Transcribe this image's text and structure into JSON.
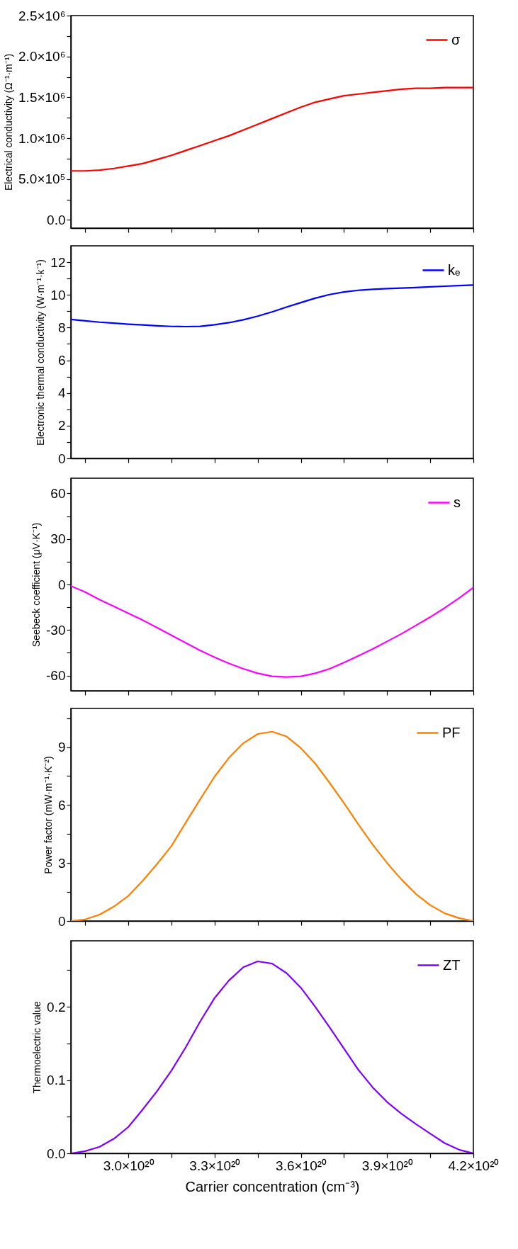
{
  "chart_data": [
    {
      "type": "line",
      "ylabel": "Electrical conductivity (Ω⁻¹·m⁻¹)",
      "legend": "top right",
      "tick_labels": "y",
      "x": [
        2.8e+20,
        2.85e+20,
        2.9e+20,
        2.95e+20,
        3e+20,
        3.05e+20,
        3.1e+20,
        3.15e+20,
        3.2e+20,
        3.25e+20,
        3.3e+20,
        3.35e+20,
        3.4e+20,
        3.45e+20,
        3.5e+20,
        3.55e+20,
        3.6e+20,
        3.65e+20,
        3.7e+20,
        3.75e+20,
        3.8e+20,
        3.85e+20,
        3.9e+20,
        3.95e+20,
        4e+20,
        4.05e+20,
        4.1e+20,
        4.15e+20,
        4.2e+20
      ],
      "series": [
        {
          "name": "σ",
          "color": "#ff0000",
          "values": [
            600000,
            600000,
            610000,
            630000,
            660000,
            690000,
            740000,
            790000,
            850000,
            910000,
            970000,
            1030000,
            1100000,
            1170000,
            1240000,
            1310000,
            1380000,
            1440000,
            1480000,
            1520000,
            1540000,
            1560000,
            1580000,
            1600000,
            1610000,
            1610000,
            1620000,
            1620000,
            1620000
          ]
        }
      ],
      "xlim": [
        2.8e+20,
        4.2e+20
      ],
      "xticks": [
        2.85e+20,
        3e+20,
        3.15e+20,
        3.3e+20,
        3.45e+20,
        3.6e+20,
        3.75e+20,
        3.9e+20,
        4.05e+20,
        4.2e+20
      ],
      "ylim": [
        -100000,
        2500000
      ],
      "yticks": [
        {
          "value": 0,
          "label": "0.0"
        },
        {
          "value": 250000,
          "label": null
        },
        {
          "value": 500000,
          "label": "5.0×10⁵"
        },
        {
          "value": 750000,
          "label": null
        },
        {
          "value": 1000000,
          "label": "1.0×10⁶"
        },
        {
          "value": 1250000,
          "label": null
        },
        {
          "value": 1500000,
          "label": "1.5×10⁶"
        },
        {
          "value": 1750000,
          "label": null
        },
        {
          "value": 2000000,
          "label": "2.0×10⁶"
        },
        {
          "value": 2250000,
          "label": null
        },
        {
          "value": 2500000,
          "label": "2.5×10⁶"
        }
      ]
    },
    {
      "type": "line",
      "ylabel": "Electronic thermal conductivity (W·m⁻¹·k⁻¹)",
      "legend": "top right",
      "tick_labels": "y",
      "x": [
        2.8e+20,
        2.85e+20,
        2.9e+20,
        2.95e+20,
        3e+20,
        3.05e+20,
        3.1e+20,
        3.15e+20,
        3.2e+20,
        3.25e+20,
        3.3e+20,
        3.35e+20,
        3.4e+20,
        3.45e+20,
        3.5e+20,
        3.55e+20,
        3.6e+20,
        3.65e+20,
        3.7e+20,
        3.75e+20,
        3.8e+20,
        3.85e+20,
        3.9e+20,
        3.95e+20,
        4e+20,
        4.05e+20,
        4.1e+20,
        4.15e+20,
        4.2e+20
      ],
      "series": [
        {
          "name": "kₑ",
          "color": "#0000ff",
          "values": [
            8.5,
            8.41,
            8.33,
            8.27,
            8.21,
            8.16,
            8.11,
            8.07,
            8.06,
            8.08,
            8.17,
            8.3,
            8.48,
            8.7,
            8.96,
            9.25,
            9.53,
            9.8,
            10.02,
            10.18,
            10.28,
            10.34,
            10.38,
            10.42,
            10.45,
            10.49,
            10.53,
            10.57,
            10.6
          ]
        }
      ],
      "xlim": [
        2.8e+20,
        4.2e+20
      ],
      "xticks": [
        2.85e+20,
        3e+20,
        3.15e+20,
        3.3e+20,
        3.45e+20,
        3.6e+20,
        3.75e+20,
        3.9e+20,
        4.05e+20,
        4.2e+20
      ],
      "ylim": [
        0,
        13
      ],
      "yticks": [
        0,
        {
          "value": 1,
          "label": null
        },
        2,
        {
          "value": 3,
          "label": null
        },
        4,
        {
          "value": 5,
          "label": null
        },
        6,
        {
          "value": 7,
          "label": null
        },
        8,
        {
          "value": 9,
          "label": null
        },
        10,
        {
          "value": 11,
          "label": null
        },
        12
      ]
    },
    {
      "type": "line",
      "ylabel": "Seebeck coefficient (μV·K⁻¹)",
      "legend": "top right",
      "tick_labels": "y",
      "x": [
        2.8e+20,
        2.85e+20,
        2.9e+20,
        2.95e+20,
        3e+20,
        3.05e+20,
        3.1e+20,
        3.15e+20,
        3.2e+20,
        3.25e+20,
        3.3e+20,
        3.35e+20,
        3.4e+20,
        3.45e+20,
        3.5e+20,
        3.55e+20,
        3.6e+20,
        3.65e+20,
        3.7e+20,
        3.75e+20,
        3.8e+20,
        3.85e+20,
        3.9e+20,
        3.95e+20,
        4e+20,
        4.05e+20,
        4.1e+20,
        4.15e+20,
        4.2e+20
      ],
      "series": [
        {
          "name": "s",
          "color": "#ff00ff",
          "values": [
            -1,
            -5,
            -10,
            -14.5,
            -19,
            -23.5,
            -28.5,
            -33.5,
            -38.5,
            -43.5,
            -48,
            -52,
            -55.5,
            -58.5,
            -60.5,
            -61,
            -60.5,
            -58.5,
            -55.5,
            -51.5,
            -47,
            -42.5,
            -37.5,
            -32.5,
            -27,
            -21.5,
            -15.5,
            -9,
            -2
          ]
        }
      ],
      "xlim": [
        2.8e+20,
        4.2e+20
      ],
      "xticks": [
        2.85e+20,
        3e+20,
        3.15e+20,
        3.3e+20,
        3.45e+20,
        3.6e+20,
        3.75e+20,
        3.9e+20,
        4.05e+20,
        4.2e+20
      ],
      "ylim": [
        -70,
        70
      ],
      "yticks": [
        -60,
        {
          "value": -45,
          "label": null
        },
        -30,
        {
          "value": -15,
          "label": null
        },
        0,
        {
          "value": 15,
          "label": null
        },
        30,
        {
          "value": 45,
          "label": null
        },
        60
      ]
    },
    {
      "type": "line",
      "ylabel": "Power factor (mW·m⁻¹·K⁻²)",
      "legend": "top right",
      "tick_labels": "y",
      "x": [
        2.8e+20,
        2.85e+20,
        2.9e+20,
        2.95e+20,
        3e+20,
        3.05e+20,
        3.1e+20,
        3.15e+20,
        3.2e+20,
        3.25e+20,
        3.3e+20,
        3.35e+20,
        3.4e+20,
        3.45e+20,
        3.5e+20,
        3.55e+20,
        3.6e+20,
        3.65e+20,
        3.7e+20,
        3.75e+20,
        3.8e+20,
        3.85e+20,
        3.9e+20,
        3.95e+20,
        4e+20,
        4.05e+20,
        4.1e+20,
        4.15e+20,
        4.2e+20
      ],
      "series": [
        {
          "name": "PF",
          "color": "#ff7f00",
          "values": [
            0,
            0.08,
            0.33,
            0.75,
            1.3,
            2.08,
            2.95,
            3.88,
            5.1,
            6.3,
            7.47,
            8.45,
            9.2,
            9.68,
            9.8,
            9.55,
            8.95,
            8.15,
            7.15,
            6.1,
            5,
            3.95,
            3,
            2.15,
            1.4,
            0.82,
            0.4,
            0.15,
            0
          ]
        }
      ],
      "xlim": [
        2.8e+20,
        4.2e+20
      ],
      "xticks": [
        2.85e+20,
        3e+20,
        3.15e+20,
        3.3e+20,
        3.45e+20,
        3.6e+20,
        3.75e+20,
        3.9e+20,
        4.05e+20,
        4.2e+20
      ],
      "ylim": [
        0,
        11
      ],
      "yticks": [
        0,
        {
          "value": 1.5,
          "label": null
        },
        3,
        {
          "value": 4.5,
          "label": null
        },
        6,
        {
          "value": 7.5,
          "label": null
        },
        9,
        {
          "value": 10.5,
          "label": null
        }
      ]
    },
    {
      "type": "line",
      "xlabel": "Carrier concentration (cm⁻³)",
      "ylabel": "Thermoelectric value",
      "legend": "top right",
      "x": [
        2.8e+20,
        2.85e+20,
        2.9e+20,
        2.95e+20,
        3e+20,
        3.05e+20,
        3.1e+20,
        3.15e+20,
        3.2e+20,
        3.25e+20,
        3.3e+20,
        3.35e+20,
        3.4e+20,
        3.45e+20,
        3.5e+20,
        3.55e+20,
        3.6e+20,
        3.65e+20,
        3.7e+20,
        3.75e+20,
        3.8e+20,
        3.85e+20,
        3.9e+20,
        3.95e+20,
        4e+20,
        4.05e+20,
        4.1e+20,
        4.15e+20,
        4.2e+20
      ],
      "series": [
        {
          "name": "ZT",
          "color": "#8000ff",
          "values": [
            0,
            0.003,
            0.009,
            0.02,
            0.036,
            0.06,
            0.085,
            0.113,
            0.145,
            0.18,
            0.212,
            0.236,
            0.254,
            0.262,
            0.259,
            0.246,
            0.226,
            0.2,
            0.172,
            0.143,
            0.114,
            0.09,
            0.07,
            0.054,
            0.04,
            0.027,
            0.014,
            0.005,
            0
          ]
        }
      ],
      "xlim": [
        2.8e+20,
        4.2e+20
      ],
      "xticks": [
        {
          "value": 2.85e+20,
          "label": null
        },
        {
          "value": 3e+20,
          "label": "3.0×10²⁰"
        },
        {
          "value": 3.15e+20,
          "label": null
        },
        {
          "value": 3.3e+20,
          "label": "3.3×10²⁰"
        },
        {
          "value": 3.45e+20,
          "label": null
        },
        {
          "value": 3.6e+20,
          "label": "3.6×10²⁰"
        },
        {
          "value": 3.75e+20,
          "label": null
        },
        {
          "value": 3.9e+20,
          "label": "3.9×10²⁰"
        },
        {
          "value": 4.05e+20,
          "label": null
        },
        {
          "value": 4.2e+20,
          "label": "4.2×10²⁰"
        }
      ],
      "ylim": [
        0,
        0.29
      ],
      "yticks": [
        {
          "value": 0,
          "label": "0.0"
        },
        {
          "value": 0.05,
          "label": null
        },
        0.1,
        {
          "value": 0.15,
          "label": null
        },
        0.2,
        {
          "value": 0.25,
          "label": null
        }
      ]
    }
  ]
}
